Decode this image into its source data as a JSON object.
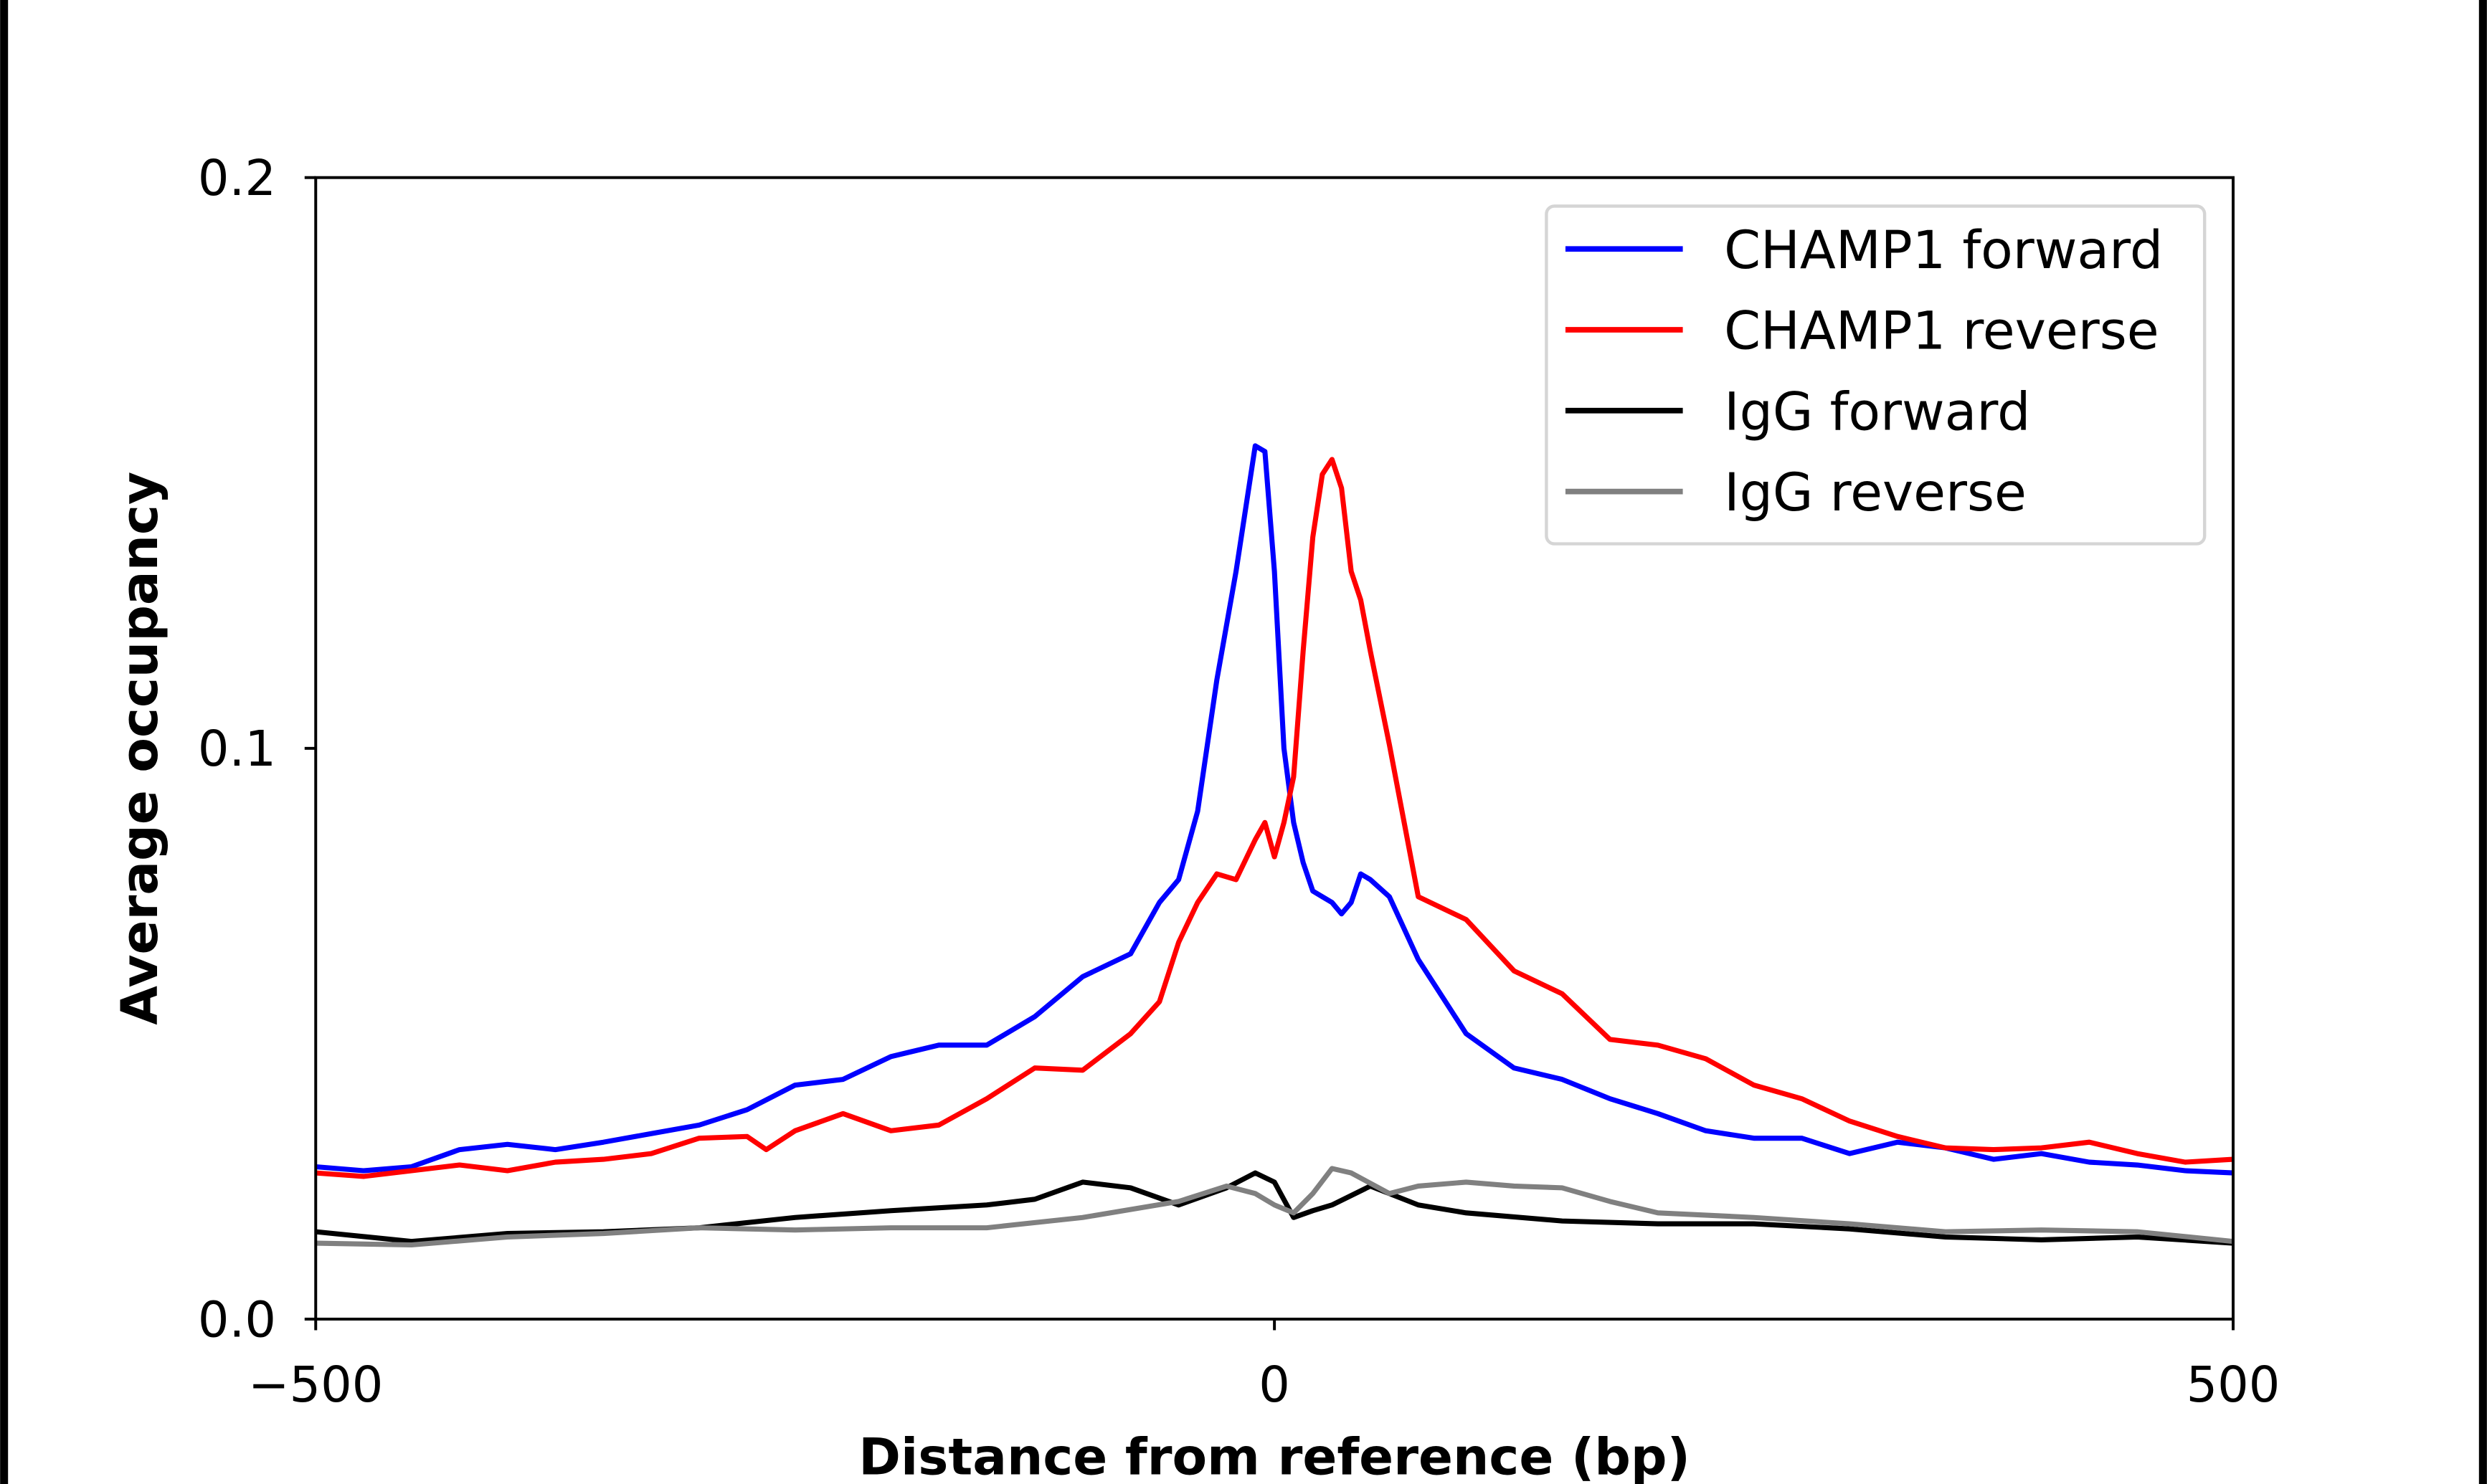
{
  "chart_data": {
    "type": "line",
    "title": "",
    "xlabel": "Distance from reference (bp)",
    "ylabel": "Average occupancy",
    "xlim": [
      -500,
      500
    ],
    "ylim": [
      0,
      0.2
    ],
    "xticks": [
      -500,
      0,
      500
    ],
    "xtick_labels": [
      "−500",
      "0",
      "500"
    ],
    "yticks": [
      0.0,
      0.1,
      0.2
    ],
    "ytick_labels": [
      "0.0",
      "0.1",
      "0.2"
    ],
    "grid": false,
    "legend_position": "top-right",
    "series": [
      {
        "name": "CHAMP1 forward",
        "color": "#0000ff",
        "x": [
          -500,
          -475,
          -450,
          -425,
          -400,
          -375,
          -350,
          -325,
          -300,
          -275,
          -250,
          -225,
          -200,
          -175,
          -150,
          -125,
          -100,
          -75,
          -60,
          -50,
          -40,
          -30,
          -20,
          -10,
          -5,
          0,
          5,
          10,
          15,
          20,
          25,
          30,
          35,
          40,
          45,
          50,
          60,
          75,
          100,
          125,
          150,
          175,
          200,
          225,
          250,
          275,
          300,
          325,
          350,
          375,
          400,
          425,
          450,
          475,
          500
        ],
        "y": [
          0.0267,
          0.026,
          0.0267,
          0.0297,
          0.0306,
          0.0297,
          0.031,
          0.0325,
          0.034,
          0.0367,
          0.041,
          0.042,
          0.046,
          0.048,
          0.048,
          0.053,
          0.06,
          0.064,
          0.073,
          0.077,
          0.089,
          0.112,
          0.131,
          0.153,
          0.152,
          0.131,
          0.1,
          0.087,
          0.08,
          0.075,
          0.074,
          0.073,
          0.071,
          0.073,
          0.078,
          0.077,
          0.074,
          0.063,
          0.05,
          0.044,
          0.042,
          0.0386,
          0.036,
          0.033,
          0.0317,
          0.0317,
          0.029,
          0.031,
          0.03,
          0.028,
          0.029,
          0.0275,
          0.027,
          0.026,
          0.0256
        ]
      },
      {
        "name": "CHAMP1 reverse",
        "color": "#ff0000",
        "x": [
          -500,
          -475,
          -450,
          -425,
          -400,
          -375,
          -350,
          -325,
          -300,
          -275,
          -265,
          -250,
          -225,
          -200,
          -175,
          -150,
          -125,
          -100,
          -75,
          -60,
          -50,
          -40,
          -30,
          -20,
          -10,
          -5,
          0,
          5,
          10,
          15,
          20,
          25,
          30,
          35,
          40,
          45,
          50,
          60,
          75,
          100,
          125,
          150,
          175,
          200,
          225,
          250,
          275,
          300,
          325,
          350,
          375,
          400,
          425,
          450,
          475,
          500
        ],
        "y": [
          0.0256,
          0.025,
          0.026,
          0.027,
          0.026,
          0.0275,
          0.028,
          0.029,
          0.0317,
          0.032,
          0.0297,
          0.033,
          0.036,
          0.033,
          0.034,
          0.0386,
          0.044,
          0.0436,
          0.05,
          0.0556,
          0.066,
          0.073,
          0.078,
          0.077,
          0.084,
          0.087,
          0.081,
          0.087,
          0.095,
          0.117,
          0.137,
          0.148,
          0.1506,
          0.1456,
          0.131,
          0.126,
          0.117,
          0.1006,
          0.074,
          0.07,
          0.061,
          0.057,
          0.049,
          0.048,
          0.0456,
          0.041,
          0.0386,
          0.0347,
          0.032,
          0.03,
          0.0297,
          0.03,
          0.031,
          0.029,
          0.0275,
          0.028
        ]
      },
      {
        "name": "IgG forward",
        "color": "#000000",
        "x": [
          -500,
          -450,
          -400,
          -350,
          -300,
          -250,
          -200,
          -150,
          -125,
          -100,
          -75,
          -50,
          -25,
          -10,
          0,
          10,
          20,
          30,
          50,
          75,
          100,
          150,
          200,
          250,
          300,
          350,
          400,
          450,
          500
        ],
        "y": [
          0.0153,
          0.0136,
          0.015,
          0.0153,
          0.016,
          0.0178,
          0.019,
          0.02,
          0.021,
          0.024,
          0.023,
          0.02,
          0.023,
          0.0256,
          0.024,
          0.0178,
          0.019,
          0.02,
          0.0233,
          0.02,
          0.0186,
          0.0172,
          0.0167,
          0.0167,
          0.0158,
          0.0144,
          0.0139,
          0.0144,
          0.0133
        ]
      },
      {
        "name": "IgG reverse",
        "color": "#808080",
        "x": [
          -500,
          -450,
          -400,
          -350,
          -300,
          -250,
          -200,
          -150,
          -100,
          -50,
          -25,
          -10,
          0,
          10,
          20,
          30,
          40,
          60,
          75,
          100,
          125,
          150,
          175,
          200,
          250,
          300,
          350,
          400,
          450,
          500
        ],
        "y": [
          0.0133,
          0.013,
          0.0144,
          0.015,
          0.016,
          0.0156,
          0.016,
          0.016,
          0.0178,
          0.0206,
          0.0233,
          0.022,
          0.02,
          0.0186,
          0.022,
          0.0264,
          0.0256,
          0.022,
          0.0233,
          0.024,
          0.0233,
          0.023,
          0.0206,
          0.0186,
          0.0178,
          0.0167,
          0.0153,
          0.0156,
          0.0153,
          0.0136
        ]
      }
    ]
  }
}
